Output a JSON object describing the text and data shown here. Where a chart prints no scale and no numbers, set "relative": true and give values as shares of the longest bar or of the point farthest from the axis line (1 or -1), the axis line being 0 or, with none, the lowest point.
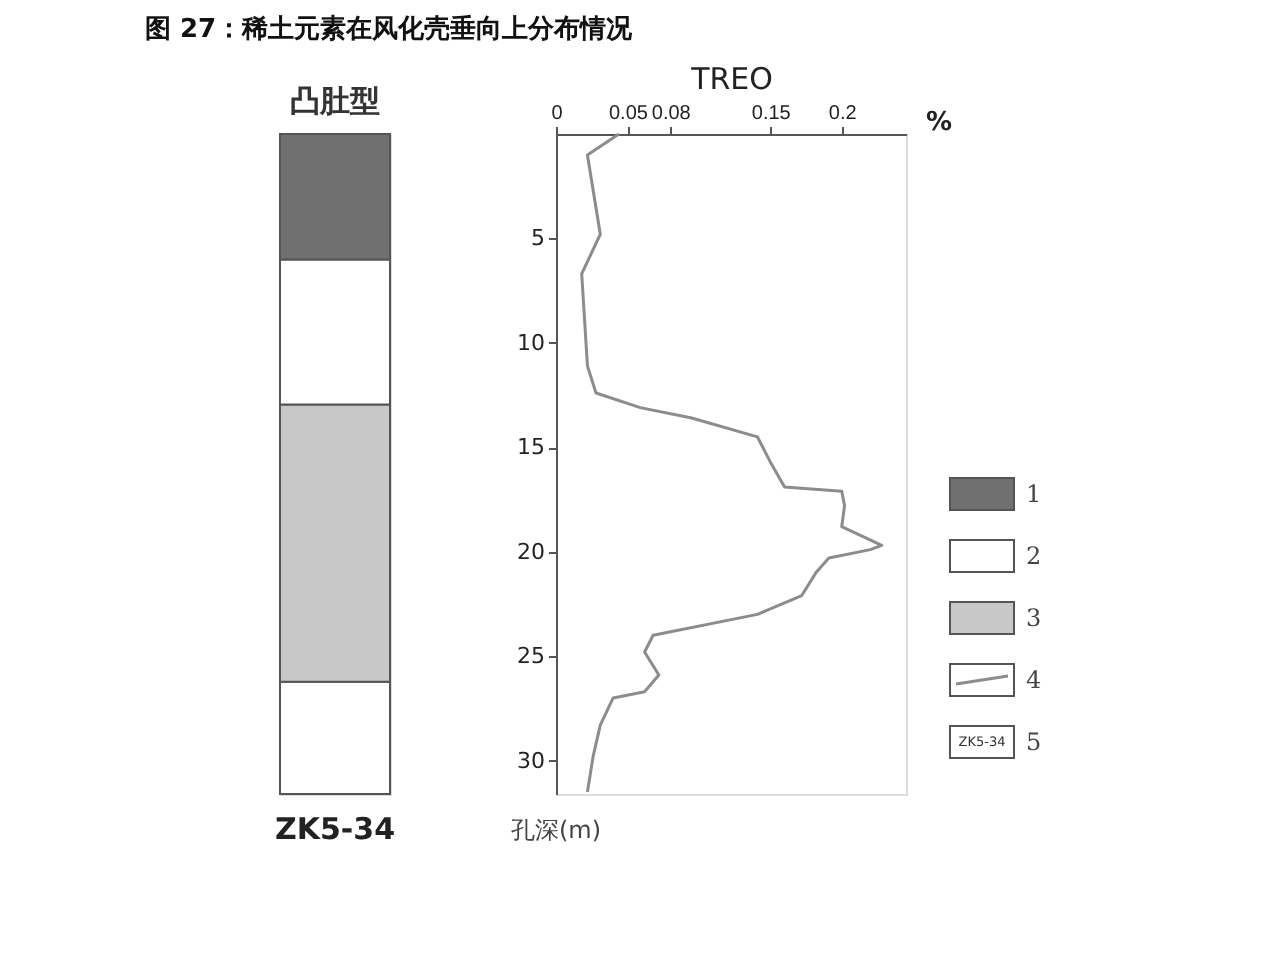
{
  "chart_data": [
    {
      "type": "bar",
      "title": "凸肚型",
      "categories": [
        "ZK5-34"
      ],
      "stacked": true,
      "relative": true,
      "legend": "right",
      "annotations": [
        "5"
      ],
      "series": [
        {
          "color": "#ffffff",
          "values": [
            0.17
          ]
        },
        {
          "name": "3",
          "color": "#c8c8c8",
          "values": [
            0.42
          ]
        },
        {
          "name": "2",
          "color": "#ffffff",
          "values": [
            0.22
          ]
        },
        {
          "name": "1",
          "color": "#707070",
          "values": [
            0.19
          ]
        }
      ]
    },
    {
      "type": "line",
      "title": "图 27：稀土元素在风化壳垂向上分布情况",
      "xlabel": "TREO",
      "ylabel": "孔深(m)",
      "annotations": [
        "%"
      ],
      "xlim": [
        0,
        0.245
      ],
      "xticks": [
        0,
        0.05,
        0.08,
        0.15,
        0.2
      ],
      "ylim": [
        31.6,
        0
      ],
      "yticks": [
        5,
        10,
        15,
        20,
        25,
        30
      ],
      "grid": false,
      "legend": "right",
      "series": [
        {
          "name": "4",
          "color": "#8c8c8c",
          "x": [
            0.044,
            0.022,
            0.031,
            0.018,
            0.022,
            0.028,
            0.059,
            0.095,
            0.141,
            0.15,
            0.16,
            0.2,
            0.202,
            0.2,
            0.228,
            0.22,
            0.191,
            0.182,
            0.172,
            0.141,
            0.068,
            0.062,
            0.072,
            0.062,
            0.04,
            0.031,
            0.026,
            0.022
          ],
          "values": [
            0,
            1,
            4.8,
            6.7,
            11.1,
            12.4,
            13.1,
            13.6,
            14.5,
            15.7,
            16.9,
            17.1,
            17.8,
            18.8,
            19.7,
            19.9,
            20.3,
            21.0,
            22.1,
            23.0,
            24.0,
            24.8,
            25.9,
            26.7,
            27.0,
            28.3,
            29.8,
            31.5
          ]
        }
      ]
    }
  ]
}
